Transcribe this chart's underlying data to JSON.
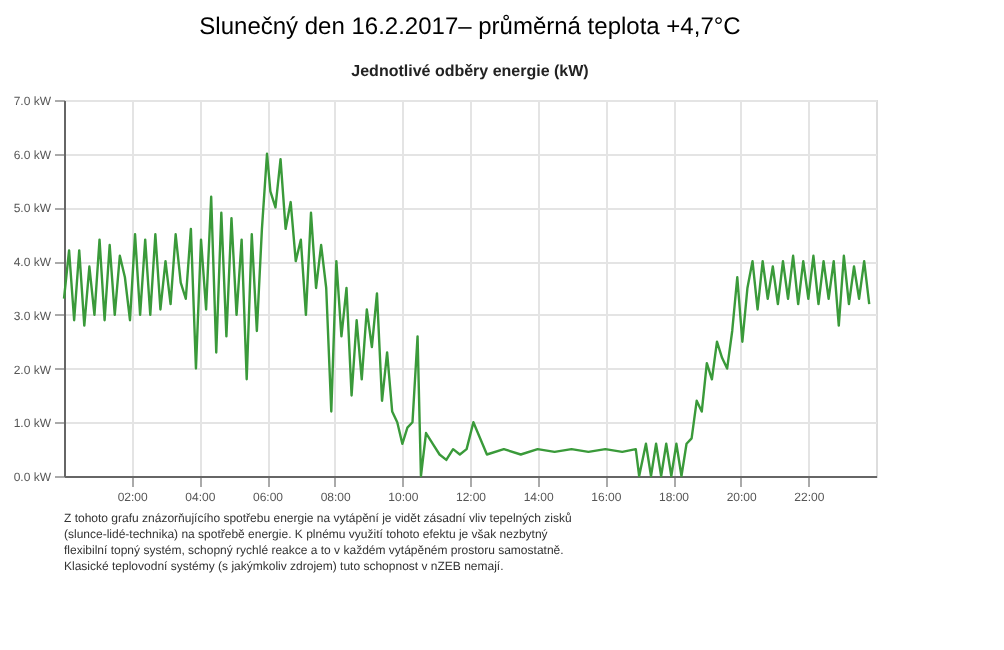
{
  "chart_data": {
    "type": "line",
    "title": "Slunečný den 16.2.2017– průměrná teplota +4,7°C",
    "subtitle": "Jednotlivé odběry energie (kW)",
    "x": [
      0,
      0.15,
      0.3,
      0.45,
      0.6,
      0.75,
      0.9,
      1.05,
      1.2,
      1.35,
      1.5,
      1.65,
      1.8,
      1.95,
      2.1,
      2.25,
      2.4,
      2.55,
      2.7,
      2.85,
      3.0,
      3.15,
      3.3,
      3.45,
      3.6,
      3.75,
      3.9,
      4.05,
      4.2,
      4.35,
      4.5,
      4.65,
      4.8,
      4.95,
      5.1,
      5.25,
      5.4,
      5.55,
      5.7,
      5.85,
      6.0,
      6.1,
      6.25,
      6.4,
      6.55,
      6.7,
      6.85,
      7.0,
      7.15,
      7.3,
      7.45,
      7.6,
      7.75,
      7.9,
      8.05,
      8.2,
      8.35,
      8.5,
      8.65,
      8.8,
      8.95,
      9.1,
      9.25,
      9.4,
      9.55,
      9.7,
      9.85,
      10.0,
      10.15,
      10.3,
      10.45,
      10.55,
      10.7,
      10.9,
      11.1,
      11.3,
      11.5,
      11.7,
      11.9,
      12.1,
      12.5,
      13,
      13.5,
      14,
      14.5,
      15,
      15.5,
      16,
      16.5,
      16.9,
      17.0,
      17.2,
      17.35,
      17.5,
      17.65,
      17.8,
      17.95,
      18.1,
      18.25,
      18.4,
      18.55,
      18.7,
      18.85,
      19.0,
      19.15,
      19.3,
      19.45,
      19.6,
      19.75,
      19.9,
      20.05,
      20.2,
      20.35,
      20.5,
      20.65,
      20.8,
      20.95,
      21.1,
      21.25,
      21.4,
      21.55,
      21.7,
      21.85,
      22.0,
      22.15,
      22.3,
      22.45,
      22.6,
      22.75,
      22.9,
      23.05,
      23.2,
      23.35,
      23.5,
      23.65,
      23.8
    ],
    "series": [
      {
        "color": "#3a9a3a",
        "values": [
          3.3,
          4.2,
          2.9,
          4.2,
          2.8,
          3.9,
          3.0,
          4.4,
          2.9,
          4.3,
          3.0,
          4.1,
          3.7,
          2.9,
          4.5,
          3.0,
          4.4,
          3.0,
          4.5,
          3.1,
          4.0,
          3.2,
          4.5,
          3.6,
          3.3,
          4.6,
          2.0,
          4.4,
          3.1,
          5.2,
          2.3,
          4.9,
          2.6,
          4.8,
          3.0,
          4.4,
          1.8,
          4.5,
          2.7,
          4.6,
          6.0,
          5.3,
          5.0,
          5.9,
          4.6,
          5.1,
          4.0,
          4.4,
          3.0,
          4.9,
          3.5,
          4.3,
          3.5,
          1.2,
          4.0,
          2.6,
          3.5,
          1.5,
          2.9,
          1.8,
          3.1,
          2.4,
          3.4,
          1.4,
          2.3,
          1.2,
          1.0,
          0.6,
          0.9,
          1.0,
          2.6,
          0.0,
          0.8,
          0.6,
          0.4,
          0.3,
          0.5,
          0.4,
          0.5,
          1.0,
          0.4,
          0.5,
          0.4,
          0.5,
          0.45,
          0.5,
          0.45,
          0.5,
          0.45,
          0.5,
          0.0,
          0.6,
          0.0,
          0.6,
          0.0,
          0.6,
          0.0,
          0.6,
          0.0,
          0.6,
          0.7,
          1.4,
          1.2,
          2.1,
          1.8,
          2.5,
          2.2,
          2.0,
          2.7,
          3.7,
          2.5,
          3.5,
          4.0,
          3.1,
          4.0,
          3.3,
          3.9,
          3.2,
          4.0,
          3.3,
          4.1,
          3.2,
          4.0,
          3.3,
          4.1,
          3.2,
          4.0,
          3.3,
          4.0,
          2.8,
          4.1,
          3.2,
          3.9,
          3.3,
          4.0,
          3.2
        ]
      }
    ],
    "xlim": [
      0,
      24
    ],
    "xticks": [
      {
        "value": 2,
        "label": "02:00"
      },
      {
        "value": 4,
        "label": "04:00"
      },
      {
        "value": 6,
        "label": "06:00"
      },
      {
        "value": 8,
        "label": "08:00"
      },
      {
        "value": 10,
        "label": "10:00"
      },
      {
        "value": 12,
        "label": "12:00"
      },
      {
        "value": 14,
        "label": "14:00"
      },
      {
        "value": 16,
        "label": "16:00"
      },
      {
        "value": 18,
        "label": "18:00"
      },
      {
        "value": 20,
        "label": "20:00"
      },
      {
        "value": 22,
        "label": "22:00"
      }
    ],
    "ylim": [
      0,
      7
    ],
    "yticks": [
      {
        "value": 0,
        "label": "0.0 kW"
      },
      {
        "value": 1,
        "label": "1.0 kW"
      },
      {
        "value": 2,
        "label": "2.0 kW"
      },
      {
        "value": 3,
        "label": "3.0 kW"
      },
      {
        "value": 4,
        "label": "4.0 kW"
      },
      {
        "value": 5,
        "label": "5.0 kW"
      },
      {
        "value": 6,
        "label": "6.0 kW"
      },
      {
        "value": 7,
        "label": "7.0 kW"
      }
    ],
    "grid": true,
    "annotations": [
      "Z tohoto grafu znázorňujícího spotřebu energie na vytápění je vidět zásadní vliv tepelných zisků\n(slunce-lidé-technika) na spotřebě energie. K plnému využití tohoto efektu je však nezbytný\nflexibilní topný systém, schopný rychlé reakce  a to v každém vytápěném prostoru samostatně.\nKlasické teplovodní systémy (s jakýmkoliv zdrojem) tuto schopnost v nZEB nemají."
    ]
  }
}
